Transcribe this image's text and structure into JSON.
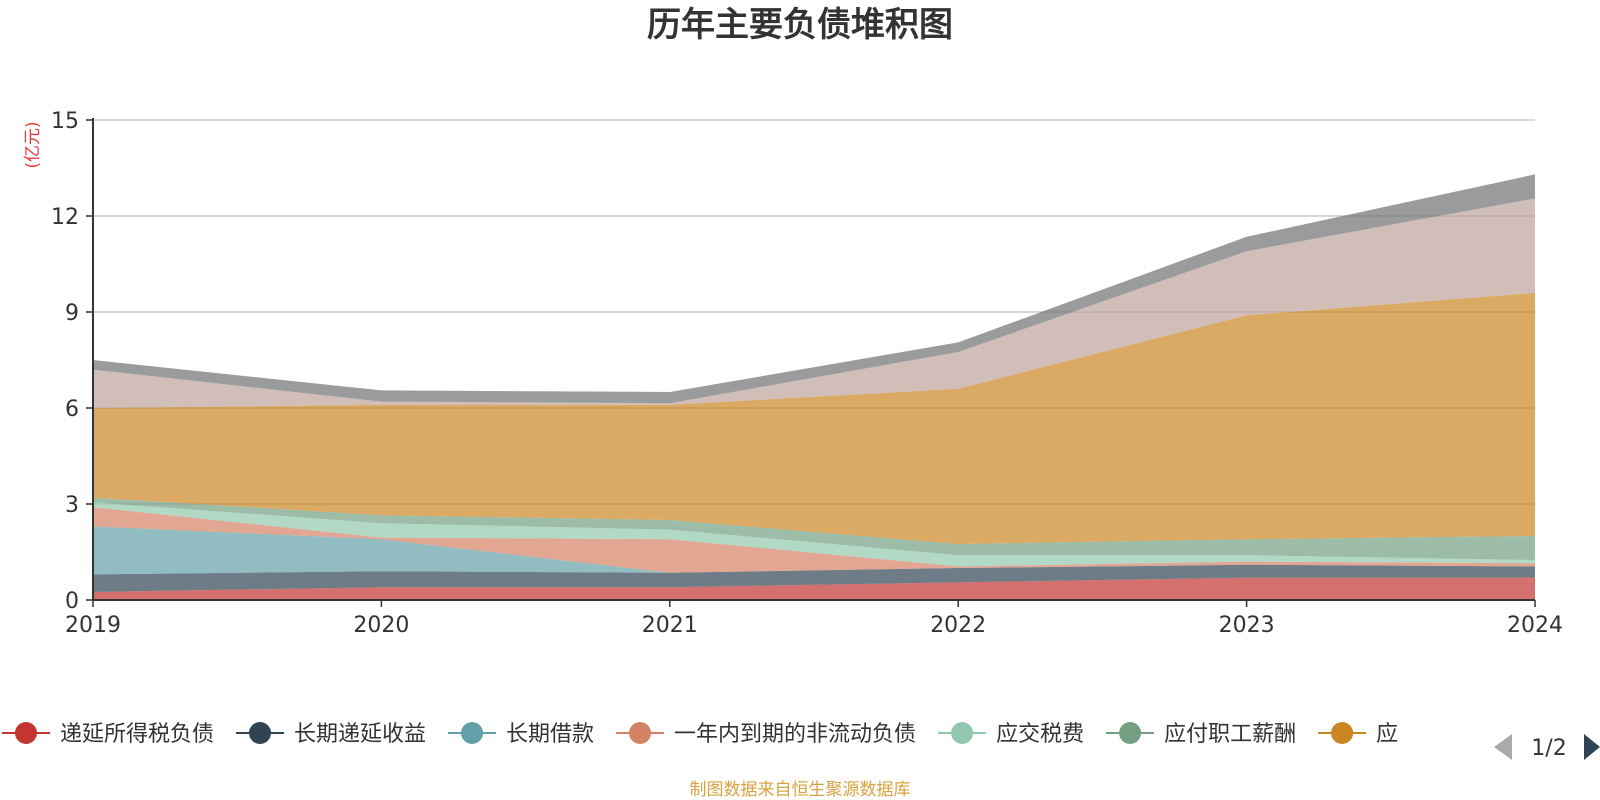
{
  "chart_data": {
    "type": "area",
    "stacked": true,
    "title": "历年主要负债堆积图",
    "ylabel": "(亿元)",
    "xlabel": "",
    "categories": [
      "2019",
      "2020",
      "2021",
      "2022",
      "2023",
      "2024"
    ],
    "ylim": [
      0,
      15
    ],
    "yticks": [
      "0",
      "3",
      "6",
      "9",
      "12",
      "15"
    ],
    "grid": true,
    "series": [
      {
        "name": "递延所得税负债",
        "color": "#c23531",
        "values": [
          0.25,
          0.4,
          0.4,
          0.55,
          0.7,
          0.7
        ]
      },
      {
        "name": "长期递延收益",
        "color": "#2f4554",
        "values": [
          0.55,
          0.5,
          0.45,
          0.45,
          0.4,
          0.35
        ]
      },
      {
        "name": "长期借款",
        "color": "#61a0a8",
        "values": [
          1.5,
          1.0,
          0.0,
          0.0,
          0.0,
          0.0
        ]
      },
      {
        "name": "一年内到期的非流动负债",
        "color": "#d48265",
        "values": [
          0.6,
          0.05,
          1.05,
          0.05,
          0.1,
          0.1
        ]
      },
      {
        "name": "应交税费",
        "color": "#91c7ae",
        "values": [
          0.15,
          0.45,
          0.3,
          0.35,
          0.2,
          0.1
        ]
      },
      {
        "name": "应付职工薪酬",
        "color": "#749f83",
        "values": [
          0.15,
          0.25,
          0.3,
          0.35,
          0.5,
          0.75
        ]
      },
      {
        "name": "应",
        "color": "#ca8622",
        "values": [
          2.8,
          3.45,
          3.6,
          4.85,
          7.0,
          7.6
        ]
      },
      {
        "name": "",
        "color": "#bda29a",
        "values": [
          1.2,
          0.1,
          0.05,
          1.15,
          2.0,
          2.95
        ]
      },
      {
        "name": "",
        "color": "#6e7074",
        "values": [
          0.3,
          0.35,
          0.35,
          0.3,
          0.45,
          0.75
        ]
      }
    ],
    "legend_position": "bottom",
    "legend_page": "1/2",
    "source": "制图数据来自恒生聚源数据库"
  }
}
